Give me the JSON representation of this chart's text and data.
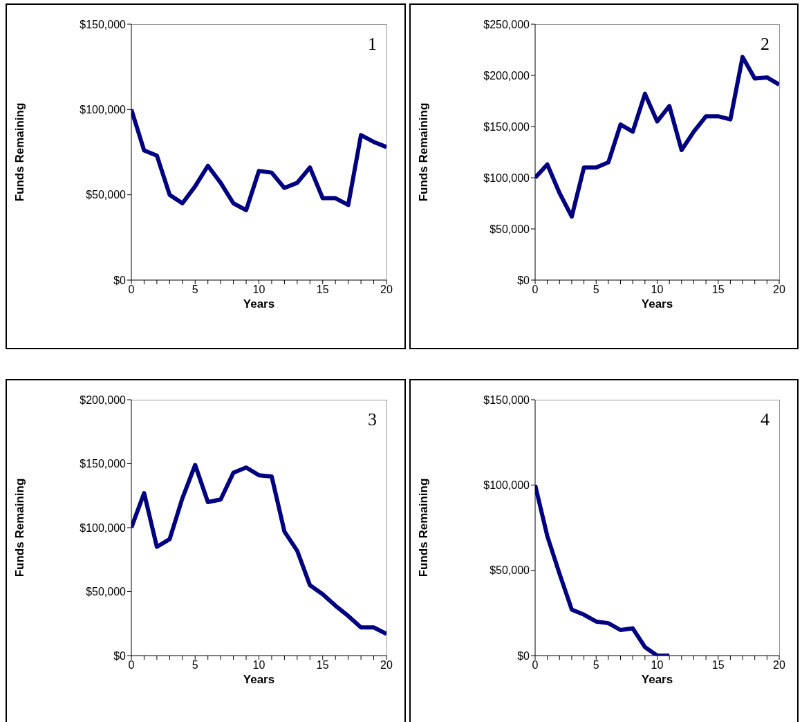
{
  "chart_data": [
    {
      "type": "line",
      "xlabel": "Years",
      "ylabel": "Funds Remaining",
      "annotations": [
        "1"
      ],
      "xlim": [
        0,
        20
      ],
      "ylim": [
        0,
        150000
      ],
      "xticks": [
        0,
        {
          "value": 1,
          "label": null
        },
        {
          "value": 2,
          "label": null
        },
        {
          "value": 3,
          "label": null
        },
        {
          "value": 4,
          "label": null
        },
        5,
        {
          "value": 6,
          "label": null
        },
        {
          "value": 7,
          "label": null
        },
        {
          "value": 8,
          "label": null
        },
        {
          "value": 9,
          "label": null
        },
        10,
        {
          "value": 11,
          "label": null
        },
        {
          "value": 12,
          "label": null
        },
        {
          "value": 13,
          "label": null
        },
        {
          "value": 14,
          "label": null
        },
        15,
        {
          "value": 16,
          "label": null
        },
        {
          "value": 17,
          "label": null
        },
        {
          "value": 18,
          "label": null
        },
        {
          "value": 19,
          "label": null
        },
        20
      ],
      "yticks": [
        {
          "value": 0,
          "label": "$0"
        },
        {
          "value": 50000,
          "label": "$50,000"
        },
        {
          "value": 100000,
          "label": "$100,000"
        },
        {
          "value": 150000,
          "label": "$150,000"
        }
      ],
      "x": [
        0,
        1,
        2,
        3,
        4,
        5,
        6,
        7,
        8,
        9,
        10,
        11,
        12,
        13,
        14,
        15,
        16,
        17,
        18,
        19,
        20
      ],
      "series": [
        {
          "color": "#000080",
          "values": [
            100000,
            76000,
            73000,
            50000,
            45000,
            55000,
            67000,
            57000,
            45000,
            41000,
            64000,
            63000,
            54000,
            57000,
            66000,
            48000,
            48000,
            44000,
            85000,
            81000,
            78000
          ]
        }
      ]
    },
    {
      "type": "line",
      "xlabel": "Years",
      "ylabel": "Funds Remaining",
      "annotations": [
        "2"
      ],
      "xlim": [
        0,
        20
      ],
      "ylim": [
        0,
        250000
      ],
      "xticks": [
        0,
        {
          "value": 1,
          "label": null
        },
        {
          "value": 2,
          "label": null
        },
        {
          "value": 3,
          "label": null
        },
        {
          "value": 4,
          "label": null
        },
        5,
        {
          "value": 6,
          "label": null
        },
        {
          "value": 7,
          "label": null
        },
        {
          "value": 8,
          "label": null
        },
        {
          "value": 9,
          "label": null
        },
        10,
        {
          "value": 11,
          "label": null
        },
        {
          "value": 12,
          "label": null
        },
        {
          "value": 13,
          "label": null
        },
        {
          "value": 14,
          "label": null
        },
        15,
        {
          "value": 16,
          "label": null
        },
        {
          "value": 17,
          "label": null
        },
        {
          "value": 18,
          "label": null
        },
        {
          "value": 19,
          "label": null
        },
        20
      ],
      "yticks": [
        {
          "value": 0,
          "label": "$0"
        },
        {
          "value": 50000,
          "label": "$50,000"
        },
        {
          "value": 100000,
          "label": "$100,000"
        },
        {
          "value": 150000,
          "label": "$150,000"
        },
        {
          "value": 200000,
          "label": "$200,000"
        },
        {
          "value": 250000,
          "label": "$250,000"
        }
      ],
      "x": [
        0,
        1,
        2,
        3,
        4,
        5,
        6,
        7,
        8,
        9,
        10,
        11,
        12,
        13,
        14,
        15,
        16,
        17,
        18,
        19,
        20
      ],
      "series": [
        {
          "color": "#000080",
          "values": [
            100000,
            113000,
            85000,
            62000,
            110000,
            110000,
            115000,
            152000,
            145000,
            182000,
            155000,
            170000,
            127000,
            145000,
            160000,
            160000,
            157000,
            218000,
            197000,
            198000,
            191000
          ]
        }
      ]
    },
    {
      "type": "line",
      "xlabel": "Years",
      "ylabel": "Funds Remaining",
      "annotations": [
        "3"
      ],
      "xlim": [
        0,
        20
      ],
      "ylim": [
        0,
        200000
      ],
      "xticks": [
        0,
        {
          "value": 1,
          "label": null
        },
        {
          "value": 2,
          "label": null
        },
        {
          "value": 3,
          "label": null
        },
        {
          "value": 4,
          "label": null
        },
        5,
        {
          "value": 6,
          "label": null
        },
        {
          "value": 7,
          "label": null
        },
        {
          "value": 8,
          "label": null
        },
        {
          "value": 9,
          "label": null
        },
        10,
        {
          "value": 11,
          "label": null
        },
        {
          "value": 12,
          "label": null
        },
        {
          "value": 13,
          "label": null
        },
        {
          "value": 14,
          "label": null
        },
        15,
        {
          "value": 16,
          "label": null
        },
        {
          "value": 17,
          "label": null
        },
        {
          "value": 18,
          "label": null
        },
        {
          "value": 19,
          "label": null
        },
        20
      ],
      "yticks": [
        {
          "value": 0,
          "label": "$0"
        },
        {
          "value": 50000,
          "label": "$50,000"
        },
        {
          "value": 100000,
          "label": "$100,000"
        },
        {
          "value": 150000,
          "label": "$150,000"
        },
        {
          "value": 200000,
          "label": "$200,000"
        }
      ],
      "x": [
        0,
        1,
        2,
        3,
        4,
        5,
        6,
        7,
        8,
        9,
        10,
        11,
        12,
        13,
        14,
        15,
        16,
        17,
        18,
        19,
        20
      ],
      "series": [
        {
          "color": "#000080",
          "values": [
            100000,
            127000,
            85000,
            91000,
            123000,
            149000,
            120000,
            122000,
            143000,
            147000,
            141000,
            140000,
            97000,
            82000,
            55000,
            48000,
            39000,
            31000,
            22000,
            22000,
            17000
          ]
        }
      ]
    },
    {
      "type": "line",
      "xlabel": "Years",
      "ylabel": "Funds Remaining",
      "annotations": [
        "4"
      ],
      "xlim": [
        0,
        20
      ],
      "ylim": [
        0,
        150000
      ],
      "xticks": [
        0,
        {
          "value": 1,
          "label": null
        },
        {
          "value": 2,
          "label": null
        },
        {
          "value": 3,
          "label": null
        },
        {
          "value": 4,
          "label": null
        },
        5,
        {
          "value": 6,
          "label": null
        },
        {
          "value": 7,
          "label": null
        },
        {
          "value": 8,
          "label": null
        },
        {
          "value": 9,
          "label": null
        },
        10,
        {
          "value": 11,
          "label": null
        },
        {
          "value": 12,
          "label": null
        },
        {
          "value": 13,
          "label": null
        },
        {
          "value": 14,
          "label": null
        },
        15,
        {
          "value": 16,
          "label": null
        },
        {
          "value": 17,
          "label": null
        },
        {
          "value": 18,
          "label": null
        },
        {
          "value": 19,
          "label": null
        },
        20
      ],
      "yticks": [
        {
          "value": 0,
          "label": "$0"
        },
        {
          "value": 50000,
          "label": "$50,000"
        },
        {
          "value": 100000,
          "label": "$100,000"
        },
        {
          "value": 150000,
          "label": "$150,000"
        }
      ],
      "x": [
        0,
        1,
        2,
        3,
        4,
        5,
        6,
        7,
        8,
        9,
        10,
        11
      ],
      "series": [
        {
          "color": "#000080",
          "values": [
            100000,
            70000,
            48000,
            27000,
            24000,
            20000,
            19000,
            15000,
            16000,
            5000,
            0,
            0
          ]
        }
      ]
    }
  ]
}
